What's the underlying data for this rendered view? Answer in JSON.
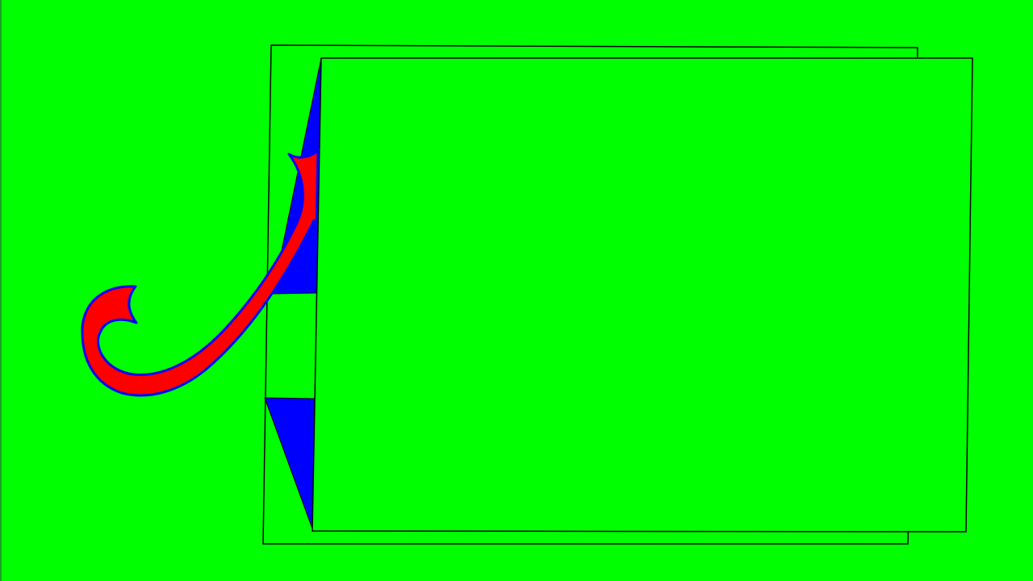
{
  "scene": {
    "background_color": "#00ff00",
    "outline_color": "#000000",
    "panel_fill": "#00ff00",
    "shadow_fill": "#0000ff",
    "ribbon_fill": "#ff0000",
    "ribbon_stroke": "#0000ff",
    "elements": [
      "back-frame",
      "upper-blue-fold",
      "lower-blue-fold",
      "front-panel",
      "red-curl-ribbon"
    ]
  }
}
